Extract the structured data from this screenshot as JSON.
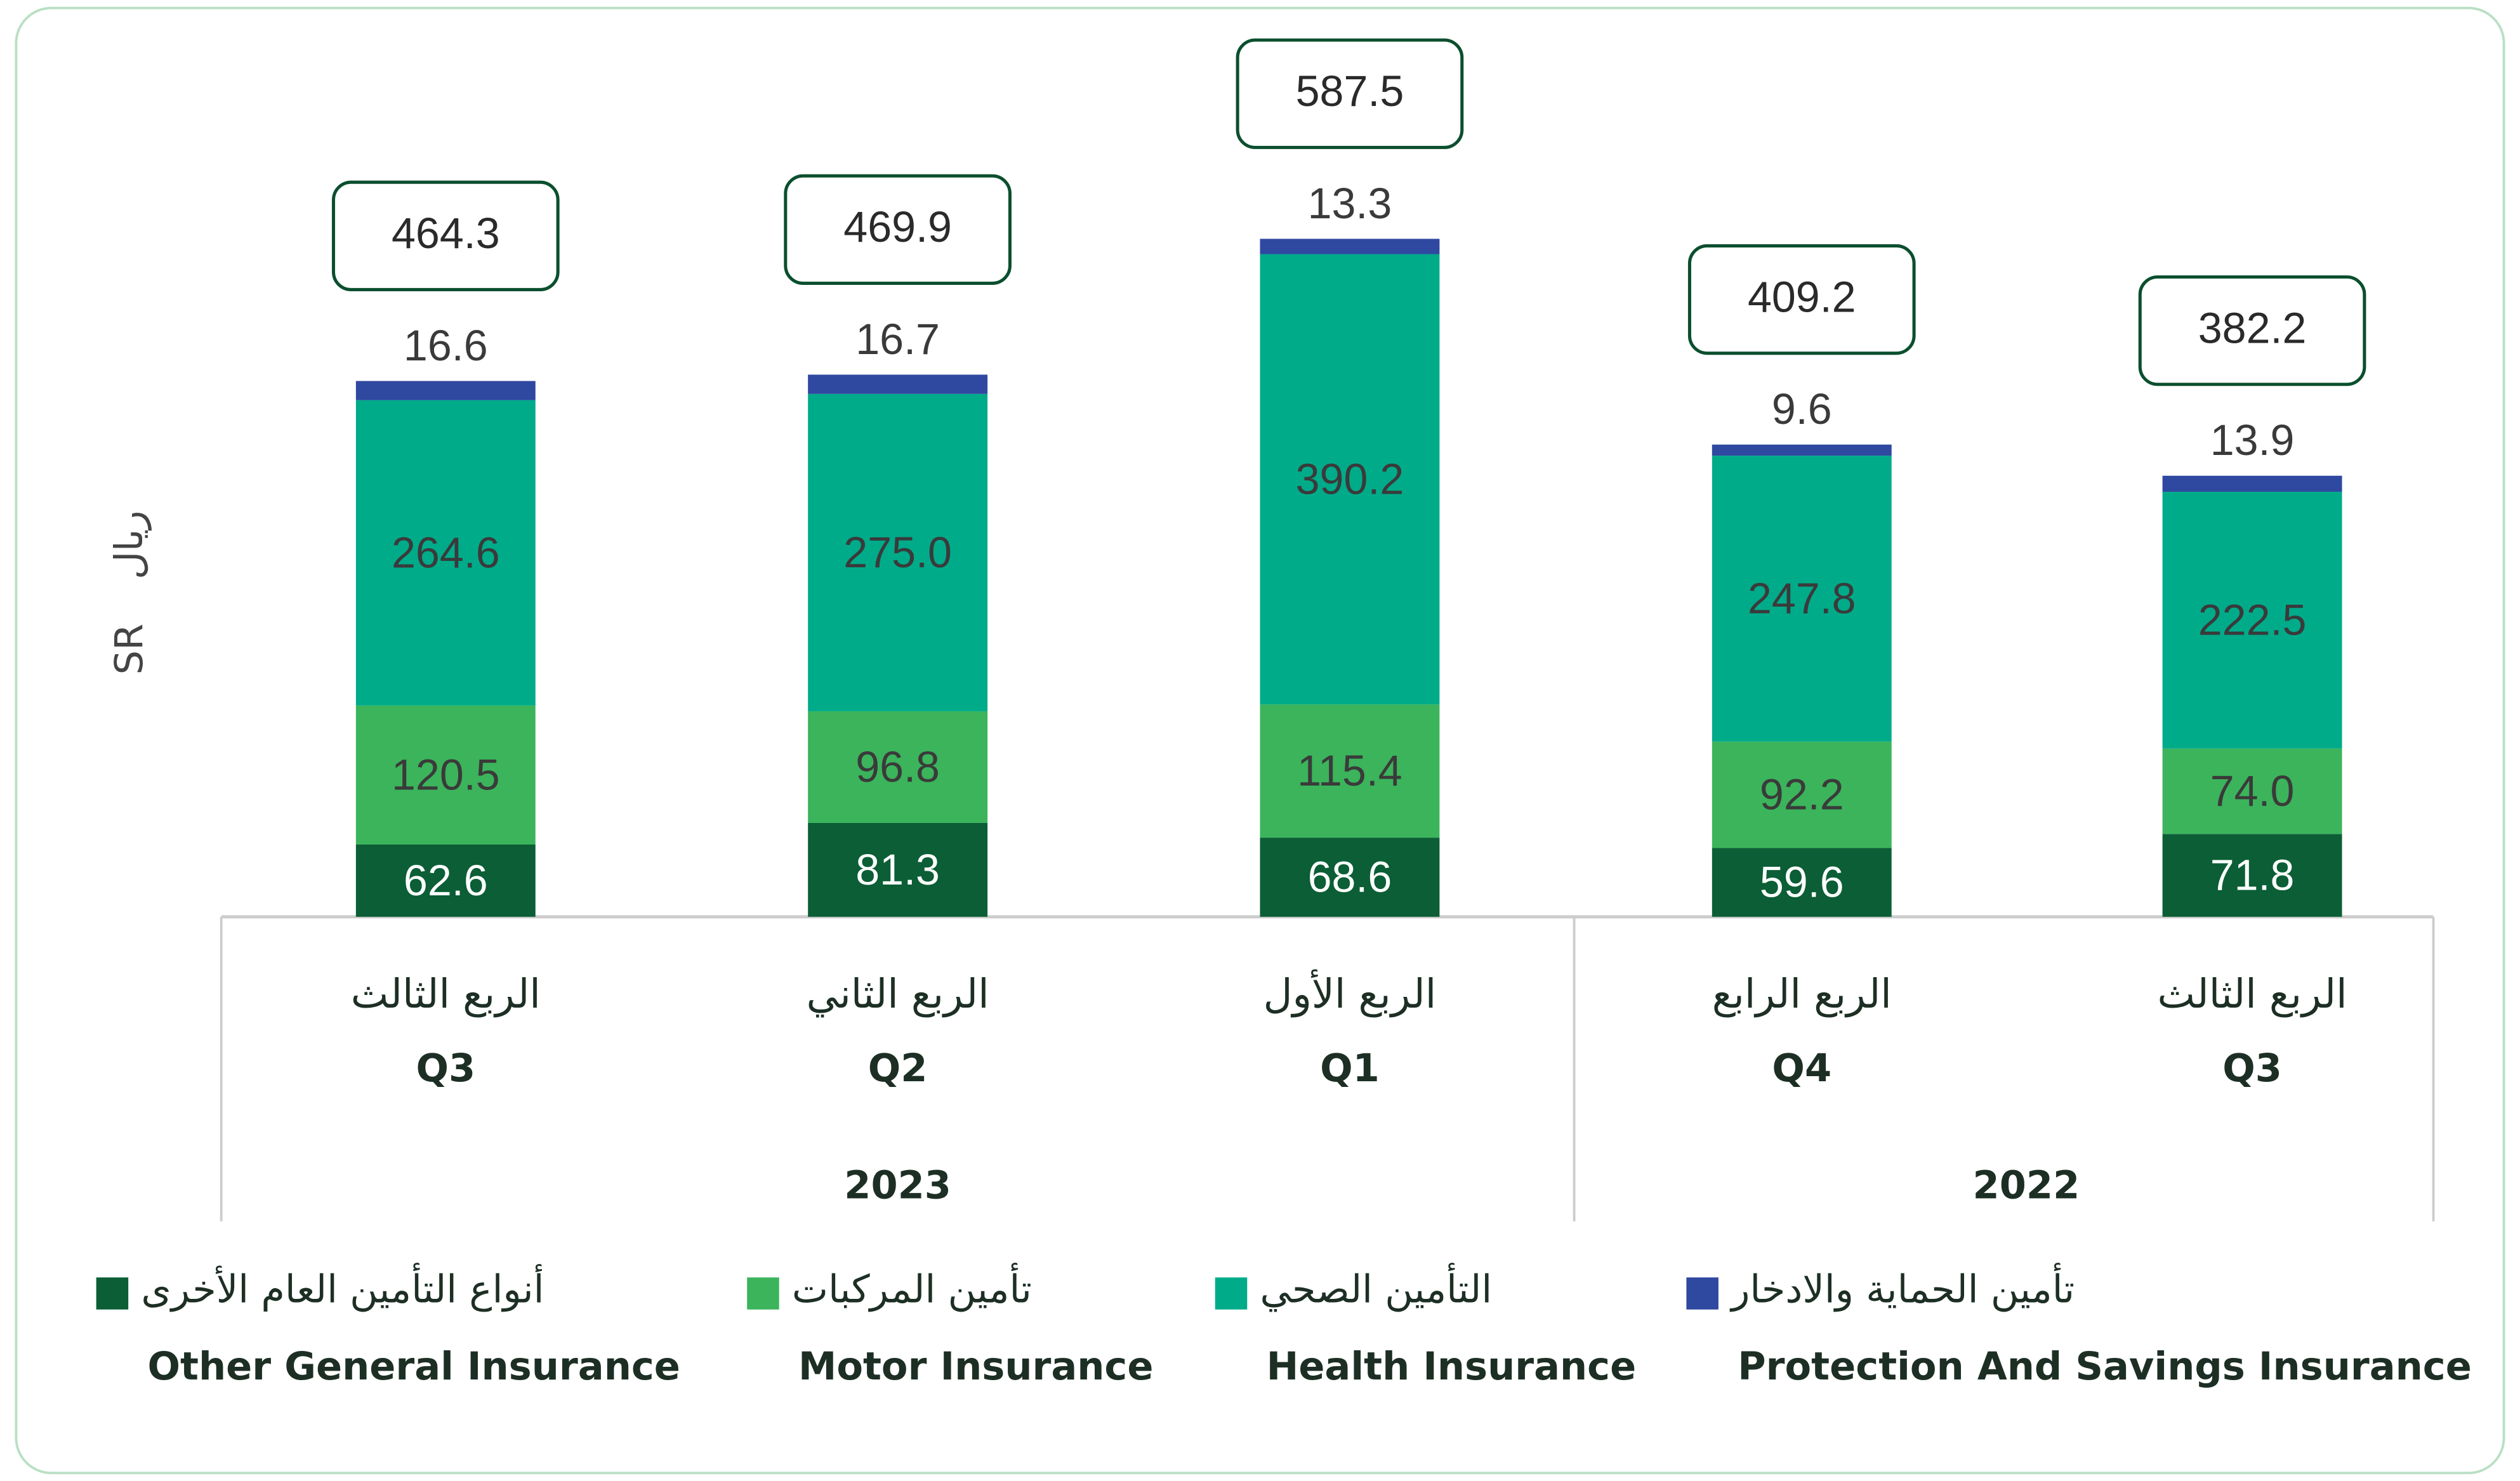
{
  "chart_data": {
    "type": "stacked_bar",
    "y_label": [
      "SR",
      "ريال"
    ],
    "groups": [
      {
        "label": "2023",
        "categories": [
          "Q3",
          "Q2",
          "Q1"
        ],
        "categories_ar": [
          "الربع الثالث",
          "الربع الثاني",
          "الربع الأول"
        ]
      },
      {
        "label": "2022",
        "categories": [
          "Q4",
          "Q3"
        ],
        "categories_ar": [
          "الربع الرابع",
          "الربع الثالث"
        ]
      }
    ],
    "series": [
      {
        "name": "Other General Insurance",
        "name_ar": "أنواع التأمين العام الأخرى",
        "color": "#0b5e35",
        "values": [
          62.6,
          81.3,
          68.6,
          59.6,
          71.8
        ]
      },
      {
        "name": "Motor Insurance",
        "name_ar": "تأمين المركبات",
        "color": "#3bb45b",
        "values": [
          120.5,
          96.8,
          115.4,
          92.2,
          74.0
        ],
        "value_labels": [
          "120.5",
          "96.8",
          "115.4",
          "92.2",
          "74.0"
        ]
      },
      {
        "name": "Health Insurance",
        "name_ar": "التأمين الصحي",
        "color": "#00ab8a",
        "values": [
          264.6,
          275.0,
          390.2,
          247.8,
          222.5
        ],
        "value_labels": [
          "264.6",
          "275.0",
          "390.2",
          "247.8",
          "222.5"
        ]
      },
      {
        "name": "Protection And Savings Insurance",
        "name_ar": "تأمين الحماية والادخار",
        "color": "#2f48a0",
        "values": [
          16.6,
          16.7,
          13.3,
          9.6,
          13.9
        ]
      }
    ],
    "totals": [
      464.3,
      469.9,
      587.5,
      409.2,
      382.2
    ]
  }
}
